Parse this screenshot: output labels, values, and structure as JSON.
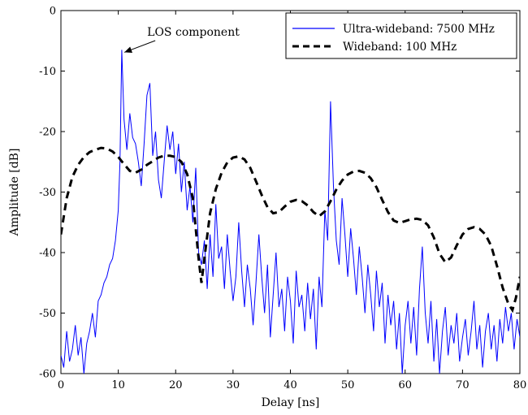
{
  "chart_data": {
    "type": "line",
    "title": "",
    "xlabel": "Delay [ns]",
    "ylabel": "Amplitude [dB]",
    "xlim": [
      0,
      80
    ],
    "ylim": [
      -60,
      0
    ],
    "x_ticks": [
      "0",
      "10",
      "20",
      "30",
      "40",
      "50",
      "60",
      "70",
      "80"
    ],
    "y_ticks": [
      "0",
      "-10",
      "-20",
      "-30",
      "-40",
      "-50",
      "-60"
    ],
    "grid": false,
    "legend_position": "top-right",
    "annotation": {
      "text": "LOS component",
      "x": 10.5,
      "y": -6.5
    },
    "series": [
      {
        "name": "Ultra-wideband: 7500 MHz",
        "color": "#0000ff",
        "style": "solid",
        "points": [
          [
            0,
            -57
          ],
          [
            0.5,
            -59
          ],
          [
            1,
            -53
          ],
          [
            1.5,
            -58
          ],
          [
            2,
            -56
          ],
          [
            2.5,
            -52
          ],
          [
            3,
            -57
          ],
          [
            3.5,
            -54
          ],
          [
            4,
            -60
          ],
          [
            4.5,
            -55
          ],
          [
            5,
            -53
          ],
          [
            5.5,
            -50
          ],
          [
            6,
            -54
          ],
          [
            6.5,
            -48
          ],
          [
            7,
            -47
          ],
          [
            7.5,
            -45
          ],
          [
            8,
            -44
          ],
          [
            8.5,
            -42
          ],
          [
            9,
            -41
          ],
          [
            9.5,
            -38
          ],
          [
            10,
            -33
          ],
          [
            10.3,
            -25
          ],
          [
            10.6,
            -6.5
          ],
          [
            11,
            -18
          ],
          [
            11.5,
            -23
          ],
          [
            12,
            -17
          ],
          [
            12.5,
            -21
          ],
          [
            13,
            -22
          ],
          [
            13.5,
            -25
          ],
          [
            14,
            -29
          ],
          [
            14.5,
            -22
          ],
          [
            15,
            -14
          ],
          [
            15.5,
            -12
          ],
          [
            16,
            -24
          ],
          [
            16.5,
            -20
          ],
          [
            17,
            -28
          ],
          [
            17.5,
            -31
          ],
          [
            18,
            -25
          ],
          [
            18.5,
            -19
          ],
          [
            19,
            -23
          ],
          [
            19.5,
            -20
          ],
          [
            20,
            -27
          ],
          [
            20.5,
            -22
          ],
          [
            21,
            -30
          ],
          [
            21.5,
            -25
          ],
          [
            22,
            -33
          ],
          [
            22.5,
            -29
          ],
          [
            23,
            -35
          ],
          [
            23.5,
            -26
          ],
          [
            24,
            -40
          ],
          [
            24.5,
            -42
          ],
          [
            25,
            -38
          ],
          [
            25.5,
            -46
          ],
          [
            26,
            -37
          ],
          [
            26.5,
            -44
          ],
          [
            27,
            -32
          ],
          [
            27.5,
            -41
          ],
          [
            28,
            -39
          ],
          [
            28.5,
            -46
          ],
          [
            29,
            -37
          ],
          [
            29.5,
            -43
          ],
          [
            30,
            -48
          ],
          [
            30.5,
            -44
          ],
          [
            31,
            -35
          ],
          [
            31.5,
            -43
          ],
          [
            32,
            -49
          ],
          [
            32.5,
            -42
          ],
          [
            33,
            -46
          ],
          [
            33.5,
            -52
          ],
          [
            34,
            -45
          ],
          [
            34.5,
            -37
          ],
          [
            35,
            -44
          ],
          [
            35.5,
            -50
          ],
          [
            36,
            -42
          ],
          [
            36.5,
            -54
          ],
          [
            37,
            -47
          ],
          [
            37.5,
            -40
          ],
          [
            38,
            -49
          ],
          [
            38.5,
            -46
          ],
          [
            39,
            -53
          ],
          [
            39.5,
            -44
          ],
          [
            40,
            -48
          ],
          [
            40.5,
            -55
          ],
          [
            41,
            -43
          ],
          [
            41.5,
            -49
          ],
          [
            42,
            -47
          ],
          [
            42.5,
            -53
          ],
          [
            43,
            -45
          ],
          [
            43.5,
            -51
          ],
          [
            44,
            -46
          ],
          [
            44.5,
            -56
          ],
          [
            45,
            -44
          ],
          [
            45.5,
            -49
          ],
          [
            46,
            -33
          ],
          [
            46.5,
            -38
          ],
          [
            47,
            -15
          ],
          [
            47.5,
            -29
          ],
          [
            48,
            -38
          ],
          [
            48.5,
            -42
          ],
          [
            49,
            -31
          ],
          [
            49.5,
            -37
          ],
          [
            50,
            -44
          ],
          [
            50.5,
            -36
          ],
          [
            51,
            -41
          ],
          [
            51.5,
            -47
          ],
          [
            52,
            -39
          ],
          [
            52.5,
            -44
          ],
          [
            53,
            -50
          ],
          [
            53.5,
            -42
          ],
          [
            54,
            -47
          ],
          [
            54.5,
            -53
          ],
          [
            55,
            -43
          ],
          [
            55.5,
            -49
          ],
          [
            56,
            -45
          ],
          [
            56.5,
            -55
          ],
          [
            57,
            -47
          ],
          [
            57.5,
            -52
          ],
          [
            58,
            -48
          ],
          [
            58.5,
            -56
          ],
          [
            59,
            -50
          ],
          [
            59.5,
            -60
          ],
          [
            60,
            -52
          ],
          [
            60.5,
            -48
          ],
          [
            61,
            -55
          ],
          [
            61.5,
            -49
          ],
          [
            62,
            -57
          ],
          [
            62.5,
            -46
          ],
          [
            63,
            -39
          ],
          [
            63.5,
            -50
          ],
          [
            64,
            -55
          ],
          [
            64.5,
            -48
          ],
          [
            65,
            -58
          ],
          [
            65.5,
            -51
          ],
          [
            66,
            -60
          ],
          [
            66.5,
            -53
          ],
          [
            67,
            -49
          ],
          [
            67.5,
            -57
          ],
          [
            68,
            -52
          ],
          [
            68.5,
            -55
          ],
          [
            69,
            -50
          ],
          [
            69.5,
            -58
          ],
          [
            70,
            -54
          ],
          [
            70.5,
            -51
          ],
          [
            71,
            -57
          ],
          [
            71.5,
            -53
          ],
          [
            72,
            -48
          ],
          [
            72.5,
            -56
          ],
          [
            73,
            -52
          ],
          [
            73.5,
            -59
          ],
          [
            74,
            -53
          ],
          [
            74.5,
            -50
          ],
          [
            75,
            -56
          ],
          [
            75.5,
            -52
          ],
          [
            76,
            -58
          ],
          [
            76.5,
            -51
          ],
          [
            77,
            -55
          ],
          [
            77.5,
            -49
          ],
          [
            78,
            -53
          ],
          [
            78.5,
            -50
          ],
          [
            79,
            -56
          ],
          [
            79.5,
            -51
          ],
          [
            80,
            -54
          ]
        ]
      },
      {
        "name": "Wideband: 100 MHz",
        "color": "#000000",
        "style": "dashed",
        "points": [
          [
            0,
            -37
          ],
          [
            1,
            -31
          ],
          [
            2,
            -27.5
          ],
          [
            3,
            -25.5
          ],
          [
            4,
            -24.2
          ],
          [
            5,
            -23.4
          ],
          [
            6,
            -23
          ],
          [
            7,
            -22.7
          ],
          [
            8,
            -22.8
          ],
          [
            9,
            -23.3
          ],
          [
            10,
            -24.2
          ],
          [
            11,
            -25.4
          ],
          [
            12,
            -26.5
          ],
          [
            13,
            -26.8
          ],
          [
            14,
            -26.3
          ],
          [
            15,
            -25.5
          ],
          [
            16,
            -24.9
          ],
          [
            17,
            -24.3
          ],
          [
            18,
            -24
          ],
          [
            19,
            -24
          ],
          [
            20,
            -24.2
          ],
          [
            21,
            -25
          ],
          [
            22,
            -27
          ],
          [
            23,
            -31
          ],
          [
            24,
            -41
          ],
          [
            24.5,
            -45
          ],
          [
            25,
            -41
          ],
          [
            26,
            -33.5
          ],
          [
            27,
            -29.5
          ],
          [
            28,
            -26.8
          ],
          [
            29,
            -25.1
          ],
          [
            30,
            -24.3
          ],
          [
            31,
            -24.1
          ],
          [
            32,
            -24.6
          ],
          [
            33,
            -26
          ],
          [
            34,
            -28.2
          ],
          [
            35,
            -30.5
          ],
          [
            36,
            -32.5
          ],
          [
            37,
            -33.5
          ],
          [
            38,
            -33.3
          ],
          [
            39,
            -32.4
          ],
          [
            40,
            -31.6
          ],
          [
            41,
            -31.3
          ],
          [
            42,
            -31.5
          ],
          [
            43,
            -32.2
          ],
          [
            44,
            -33.3
          ],
          [
            45,
            -34
          ],
          [
            46,
            -33.2
          ],
          [
            47,
            -31.5
          ],
          [
            48,
            -29.6
          ],
          [
            49,
            -28.1
          ],
          [
            50,
            -27.1
          ],
          [
            51,
            -26.6
          ],
          [
            52,
            -26.5
          ],
          [
            53,
            -26.8
          ],
          [
            54,
            -27.7
          ],
          [
            55,
            -29.2
          ],
          [
            56,
            -31.3
          ],
          [
            57,
            -33.3
          ],
          [
            58,
            -34.7
          ],
          [
            59,
            -35.1
          ],
          [
            60,
            -34.8
          ],
          [
            61,
            -34.5
          ],
          [
            62,
            -34.4
          ],
          [
            63,
            -34.6
          ],
          [
            64,
            -35.5
          ],
          [
            65,
            -37.5
          ],
          [
            66,
            -40.2
          ],
          [
            67,
            -41.6
          ],
          [
            68,
            -40.8
          ],
          [
            69,
            -38.8
          ],
          [
            70,
            -37
          ],
          [
            71,
            -36.1
          ],
          [
            72,
            -35.8
          ],
          [
            73,
            -36.1
          ],
          [
            74,
            -37
          ],
          [
            75,
            -38.9
          ],
          [
            76,
            -42.2
          ],
          [
            77,
            -45.8
          ],
          [
            78,
            -48.5
          ],
          [
            78.7,
            -49.5
          ],
          [
            79.3,
            -47.5
          ],
          [
            80,
            -44
          ]
        ]
      }
    ]
  }
}
